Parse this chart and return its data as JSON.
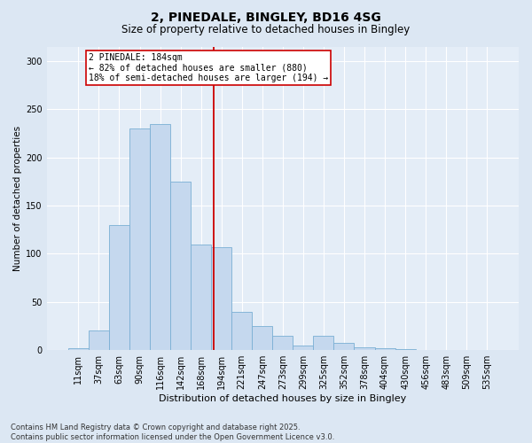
{
  "title1": "2, PINEDALE, BINGLEY, BD16 4SG",
  "title2": "Size of property relative to detached houses in Bingley",
  "xlabel": "Distribution of detached houses by size in Bingley",
  "ylabel": "Number of detached properties",
  "bar_labels": [
    "11sqm",
    "37sqm",
    "63sqm",
    "90sqm",
    "116sqm",
    "142sqm",
    "168sqm",
    "194sqm",
    "221sqm",
    "247sqm",
    "273sqm",
    "299sqm",
    "325sqm",
    "352sqm",
    "378sqm",
    "404sqm",
    "430sqm",
    "456sqm",
    "483sqm",
    "509sqm",
    "535sqm"
  ],
  "bar_values": [
    2,
    20,
    130,
    230,
    235,
    175,
    110,
    107,
    40,
    25,
    15,
    5,
    15,
    8,
    3,
    2,
    1,
    0,
    0,
    0,
    0
  ],
  "bar_color": "#c5d8ee",
  "bar_edge_color": "#7aafd4",
  "vline_color": "#cc0000",
  "vline_pos": 6.62,
  "annotation_text": "2 PINEDALE: 184sqm\n← 82% of detached houses are smaller (880)\n18% of semi-detached houses are larger (194) →",
  "annotation_box_color": "#ffffff",
  "annotation_box_edge_color": "#cc0000",
  "ylim": [
    0,
    315
  ],
  "yticks": [
    0,
    50,
    100,
    150,
    200,
    250,
    300
  ],
  "footer_text": "Contains HM Land Registry data © Crown copyright and database right 2025.\nContains public sector information licensed under the Open Government Licence v3.0.",
  "bg_color": "#dce7f3",
  "plot_bg_color": "#e4edf7",
  "title1_fontsize": 10,
  "title2_fontsize": 8.5,
  "xlabel_fontsize": 8,
  "ylabel_fontsize": 7.5,
  "tick_fontsize": 7,
  "annotation_fontsize": 7,
  "footer_fontsize": 6
}
